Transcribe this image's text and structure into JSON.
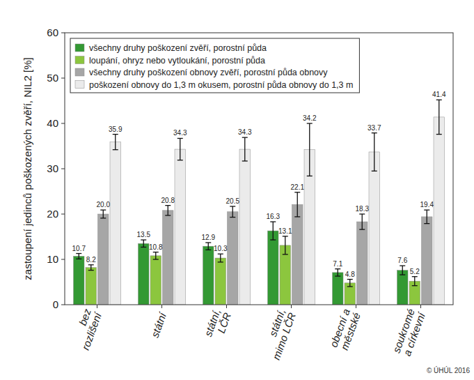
{
  "chart_data": {
    "type": "bar",
    "y_label": "zastoupení jedinců poškozených zvěří, NIL2 [%]",
    "source": "© ÚHÚL 2016",
    "categories": [
      "bez\nrozlišení",
      "státní",
      "státní,\nLČR",
      "státní,\nmimo LČR",
      "obecní a\nměstské",
      "soukromé\na církevní"
    ],
    "series": [
      {
        "name": "všechny druhy poškození zvěří, porostní půda",
        "color": "#339933",
        "values": [
          10.7,
          13.5,
          12.9,
          16.3,
          7.1,
          7.6
        ],
        "value_labels": [
          "10.7",
          "13.5",
          "12.9",
          "16.3",
          "7.1",
          "7.6"
        ],
        "errors": [
          0.6,
          0.8,
          0.8,
          2.0,
          0.8,
          1.0
        ]
      },
      {
        "name": "loupání, ohryz nebo vytloukání, porostní půda",
        "color": "#8cc63e",
        "values": [
          8.2,
          10.8,
          10.3,
          13.1,
          4.8,
          5.2
        ],
        "value_labels": [
          "8.2",
          "10.8",
          "10.3",
          "13.1",
          "4.8",
          "5.2"
        ],
        "errors": [
          0.6,
          0.8,
          0.9,
          2.0,
          0.8,
          1.0
        ]
      },
      {
        "name": "všechny druhy poškození obnovy zvěří, porostní půda obnovy",
        "color": "#a6a6a6",
        "values": [
          20.0,
          20.8,
          20.5,
          22.1,
          18.3,
          19.4
        ],
        "value_labels": [
          "20.0",
          "20.8",
          "20.5",
          "22.1",
          "18.3",
          "19.4"
        ],
        "errors": [
          0.9,
          1.1,
          1.2,
          2.7,
          1.7,
          1.5
        ]
      },
      {
        "name": "poškození obnovy do 1,3 m okusem, porostní půda obnovy do 1,3 m",
        "color": "#ebebeb",
        "values": [
          35.9,
          34.3,
          34.3,
          34.2,
          33.7,
          41.4
        ],
        "value_labels": [
          "35.9",
          "34.3",
          "34.3",
          "34.2",
          "33.7",
          "41.4"
        ],
        "errors": [
          1.7,
          2.4,
          2.6,
          5.8,
          4.2,
          3.8
        ]
      }
    ],
    "ylim": [
      0,
      60
    ],
    "yticks": [
      0,
      10,
      20,
      30,
      40,
      50,
      60
    ],
    "grid": false,
    "legend": "upper left",
    "data_labels": true
  }
}
